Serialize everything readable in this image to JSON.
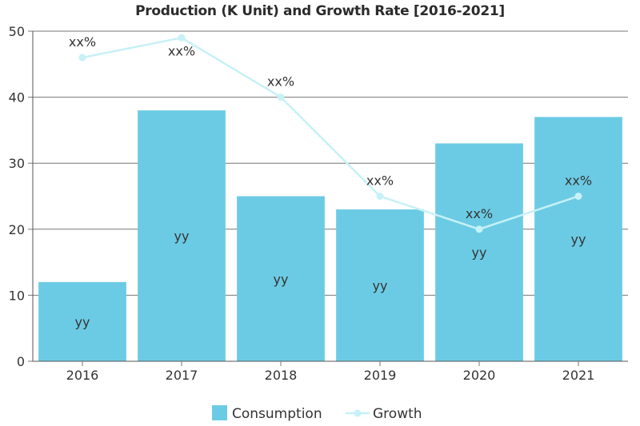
{
  "chart_data": {
    "type": "bar",
    "title": "Production (K Unit) and Growth Rate [2016-2021]",
    "categories": [
      "2016",
      "2017",
      "2018",
      "2019",
      "2020",
      "2021"
    ],
    "ylim": [
      0,
      50
    ],
    "yticks": [
      0,
      10,
      20,
      30,
      40,
      50
    ],
    "grid": true,
    "legend_position": "bottom",
    "series": [
      {
        "name": "Consumption",
        "type": "bar",
        "color": "#6ccbe4",
        "values": [
          12,
          38,
          25,
          23,
          33,
          37
        ],
        "labels": [
          "yy",
          "yy",
          "yy",
          "yy",
          "yy",
          "yy"
        ]
      },
      {
        "name": "Growth",
        "type": "line",
        "color": "#c6f1f6",
        "values": [
          46,
          49,
          40,
          25,
          20,
          25
        ],
        "labels": [
          "xx%",
          "xx%",
          "xx%",
          "xx%",
          "xx%",
          "xx%"
        ]
      }
    ]
  }
}
